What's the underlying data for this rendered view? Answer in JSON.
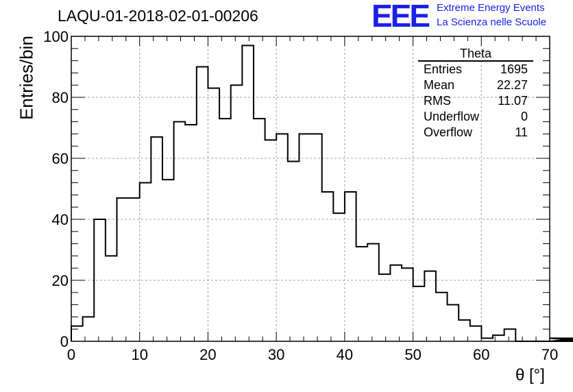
{
  "chart_data": {
    "type": "bar",
    "title": "LAQU-01-2018-02-01-00206",
    "xlabel": "θ [°]",
    "ylabel": "Entries/bin",
    "xlim": [
      0,
      70
    ],
    "ylim": [
      0,
      100
    ],
    "grid": true,
    "bin_width": 1.667,
    "x_ticks": [
      "0",
      "10",
      "20",
      "30",
      "40",
      "50",
      "60",
      "70"
    ],
    "y_ticks": [
      "0",
      "20",
      "40",
      "60",
      "80",
      "100"
    ],
    "values": [
      5,
      8,
      40,
      28,
      47,
      47,
      52,
      67,
      53,
      72,
      71,
      90,
      83,
      73,
      84,
      97,
      73,
      66,
      68,
      59,
      68,
      68,
      49,
      42,
      49,
      31,
      32,
      22,
      25,
      24,
      18,
      23,
      16,
      12,
      7,
      5,
      1,
      2,
      4,
      0,
      0,
      0,
      0,
      0,
      0,
      1,
      0,
      1
    ]
  },
  "stats_box": {
    "title": "Theta",
    "rows": [
      {
        "label": "Entries",
        "value": "1695"
      },
      {
        "label": "Mean",
        "value": "22.27"
      },
      {
        "label": "RMS",
        "value": "11.07"
      },
      {
        "label": "Underflow",
        "value": "0"
      },
      {
        "label": "Overflow",
        "value": "11"
      }
    ]
  },
  "logo": {
    "mark": "EEE",
    "line1": "Extreme Energy Events",
    "line2": "La Scienza nelle Scuole",
    "color": "#1a22e6"
  }
}
